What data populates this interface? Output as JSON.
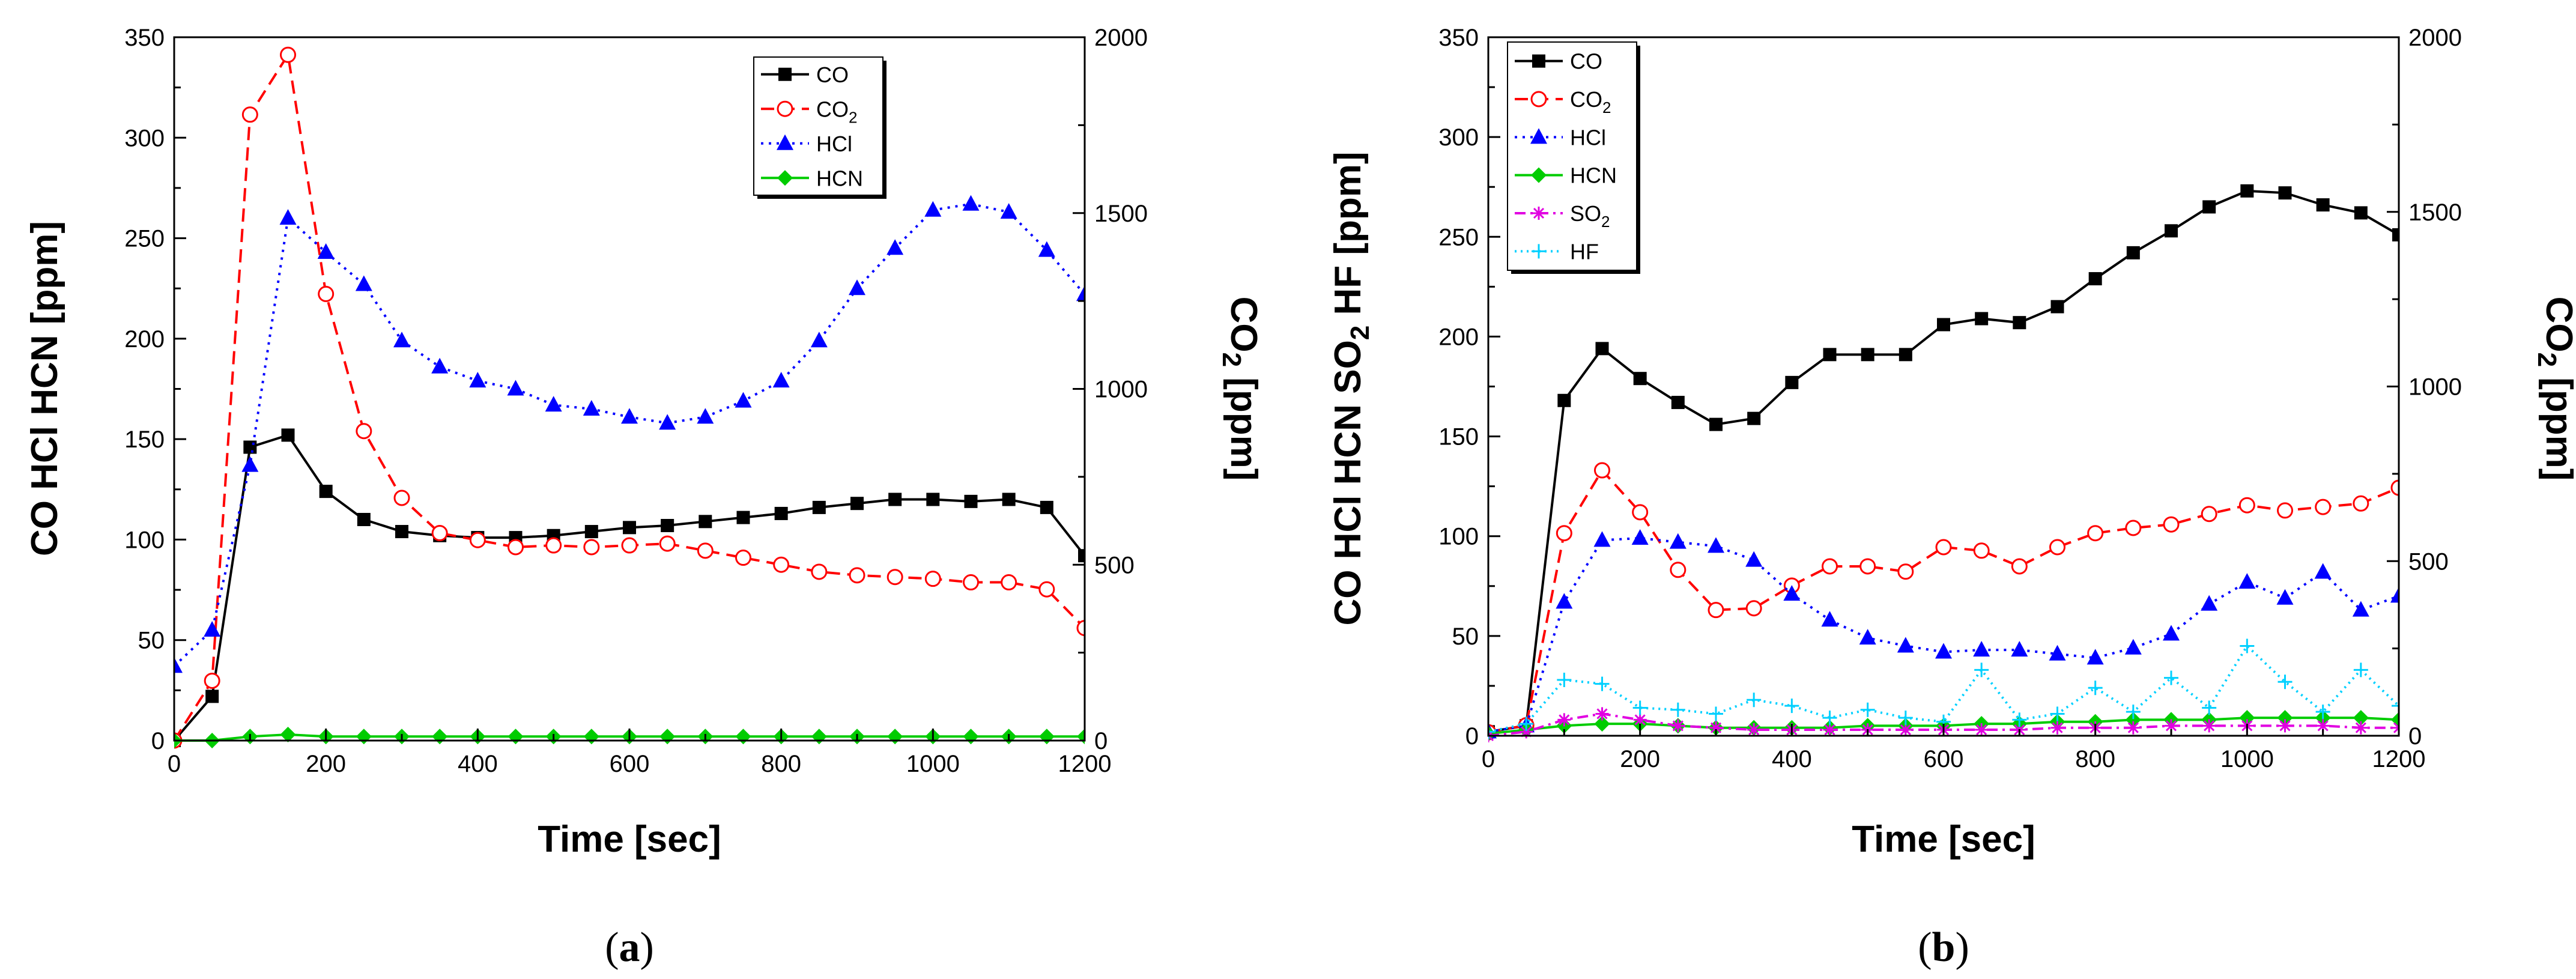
{
  "figure": {
    "captions": [
      "a",
      "b"
    ]
  },
  "chart_data": [
    {
      "type": "line",
      "panel": "a",
      "caption": "a",
      "xlabel": "Time [sec]",
      "ylabel_left": "CO  HCl  HCN [ppm]",
      "ylabel_right": "CO2 [ppm]",
      "ylabel_right_main": "CO",
      "ylabel_right_sub": "2",
      "ylabel_right_tail": " [ppm]",
      "xlim": [
        0,
        1200
      ],
      "ylim_left": [
        0,
        350
      ],
      "ylim_right": [
        0,
        2000
      ],
      "xticks": [
        "0",
        "200",
        "400",
        "600",
        "800",
        "1000",
        "1200"
      ],
      "yticks_left": [
        "0",
        "50",
        "100",
        "150",
        "200",
        "250",
        "300",
        "350"
      ],
      "yticks_right": [
        "0",
        "500",
        "1000",
        "1500",
        "2000"
      ],
      "legend_position": "top-right",
      "series": [
        {
          "name": "CO",
          "label_main": "CO",
          "label_sub": "",
          "color": "#000000",
          "dash": "",
          "marker": "square",
          "axis": "left",
          "x": [
            0,
            50,
            100,
            150,
            200,
            250,
            300,
            350,
            400,
            450,
            500,
            550,
            600,
            650,
            700,
            750,
            800,
            850,
            900,
            950,
            1000,
            1050,
            1100,
            1150,
            1200
          ],
          "y": [
            0,
            22,
            146,
            152,
            124,
            110,
            104,
            102,
            101,
            101,
            102,
            104,
            106,
            107,
            109,
            111,
            113,
            116,
            118,
            120,
            120,
            119,
            120,
            116,
            92
          ]
        },
        {
          "name": "CO2",
          "label_main": "CO",
          "label_sub": "2",
          "color": "#ff0000",
          "dash": "22,12",
          "marker": "circle",
          "axis": "right",
          "x": [
            0,
            50,
            100,
            150,
            200,
            250,
            300,
            350,
            400,
            450,
            500,
            550,
            600,
            650,
            700,
            750,
            800,
            850,
            900,
            950,
            1000,
            1050,
            1100,
            1150,
            1200
          ],
          "y": [
            0,
            170,
            1780,
            1950,
            1270,
            880,
            690,
            590,
            570,
            550,
            555,
            550,
            555,
            560,
            540,
            520,
            500,
            480,
            470,
            465,
            460,
            450,
            450,
            430,
            320
          ]
        },
        {
          "name": "HCl",
          "label_main": "HCl",
          "label_sub": "",
          "color": "#0000ff",
          "dash": "4,9",
          "marker": "triangle",
          "axis": "left",
          "x": [
            0,
            50,
            100,
            150,
            200,
            250,
            300,
            350,
            400,
            450,
            500,
            550,
            600,
            650,
            700,
            750,
            800,
            850,
            900,
            950,
            1000,
            1050,
            1100,
            1150,
            1200
          ],
          "y": [
            37,
            55,
            137,
            260,
            243,
            227,
            199,
            186,
            179,
            175,
            167,
            165,
            161,
            158,
            161,
            169,
            179,
            199,
            225,
            245,
            264,
            267,
            263,
            244,
            222
          ]
        },
        {
          "name": "HCN",
          "label_main": "HCN",
          "label_sub": "",
          "color": "#00cc00",
          "dash": "",
          "marker": "diamond",
          "axis": "left",
          "x": [
            0,
            50,
            100,
            150,
            200,
            250,
            300,
            350,
            400,
            450,
            500,
            550,
            600,
            650,
            700,
            750,
            800,
            850,
            900,
            950,
            1000,
            1050,
            1100,
            1150,
            1200
          ],
          "y": [
            0,
            0,
            2,
            3,
            2,
            2,
            2,
            2,
            2,
            2,
            2,
            2,
            2,
            2,
            2,
            2,
            2,
            2,
            2,
            2,
            2,
            2,
            2,
            2,
            2
          ]
        }
      ]
    },
    {
      "type": "line",
      "panel": "b",
      "caption": "b",
      "xlabel": "Time [sec]",
      "ylabel_left": "CO  HCl  HCN  SO2  HF [ppm]",
      "ylabel_left_parts": [
        "CO  HCl  HCN  SO",
        "2",
        "  HF [ppm]"
      ],
      "ylabel_right": "CO2 [ppm]",
      "ylabel_right_main": "CO",
      "ylabel_right_sub": "2",
      "ylabel_right_tail": " [ppm]",
      "xlim": [
        0,
        1200
      ],
      "ylim_left": [
        0,
        350
      ],
      "ylim_right": [
        0,
        2000
      ],
      "xticks": [
        "0",
        "200",
        "400",
        "600",
        "800",
        "1000",
        "1200"
      ],
      "yticks_left": [
        "0",
        "50",
        "100",
        "150",
        "200",
        "250",
        "300",
        "350"
      ],
      "yticks_right": [
        "0",
        "500",
        "1000",
        "1500",
        "2000"
      ],
      "legend_position": "top-left",
      "series": [
        {
          "name": "CO",
          "label_main": "CO",
          "label_sub": "",
          "color": "#000000",
          "dash": "",
          "marker": "square",
          "axis": "left",
          "x": [
            0,
            50,
            100,
            150,
            200,
            250,
            300,
            350,
            400,
            450,
            500,
            550,
            600,
            650,
            700,
            750,
            800,
            850,
            900,
            950,
            1000,
            1050,
            1100,
            1150,
            1200
          ],
          "y": [
            2,
            5,
            168,
            194,
            179,
            167,
            156,
            159,
            177,
            191,
            191,
            191,
            206,
            209,
            207,
            215,
            229,
            242,
            253,
            265,
            273,
            272,
            266,
            262,
            251
          ]
        },
        {
          "name": "CO2",
          "label_main": "CO",
          "label_sub": "2",
          "color": "#ff0000",
          "dash": "22,12",
          "marker": "circle",
          "axis": "right",
          "x": [
            0,
            50,
            100,
            150,
            200,
            250,
            300,
            350,
            400,
            450,
            500,
            550,
            600,
            650,
            700,
            750,
            800,
            850,
            900,
            950,
            1000,
            1050,
            1100,
            1150,
            1200
          ],
          "y": [
            10,
            30,
            580,
            760,
            640,
            475,
            360,
            365,
            430,
            485,
            485,
            470,
            540,
            530,
            485,
            540,
            580,
            595,
            605,
            635,
            660,
            645,
            655,
            665,
            710
          ]
        },
        {
          "name": "HCl",
          "label_main": "HCl",
          "label_sub": "",
          "color": "#0000ff",
          "dash": "4,9",
          "marker": "triangle",
          "axis": "left",
          "x": [
            0,
            50,
            100,
            150,
            200,
            250,
            300,
            350,
            400,
            450,
            500,
            550,
            600,
            650,
            700,
            750,
            800,
            850,
            900,
            950,
            1000,
            1050,
            1100,
            1150,
            1200
          ],
          "y": [
            2,
            5,
            67,
            98,
            99,
            97,
            95,
            88,
            71,
            58,
            49,
            45,
            42,
            43,
            43,
            41,
            39,
            44,
            51,
            66,
            77,
            69,
            82,
            63,
            70
          ]
        },
        {
          "name": "HCN",
          "label_main": "HCN",
          "label_sub": "",
          "color": "#00cc00",
          "dash": "",
          "marker": "diamond",
          "axis": "left",
          "x": [
            0,
            50,
            100,
            150,
            200,
            250,
            300,
            350,
            400,
            450,
            500,
            550,
            600,
            650,
            700,
            750,
            800,
            850,
            900,
            950,
            1000,
            1050,
            1100,
            1150,
            1200
          ],
          "y": [
            1,
            3,
            5,
            6,
            6,
            5,
            4,
            4,
            4,
            4,
            5,
            5,
            5,
            6,
            6,
            7,
            7,
            8,
            8,
            8,
            9,
            9,
            9,
            9,
            8
          ]
        },
        {
          "name": "SO2",
          "label_main": "SO",
          "label_sub": "2",
          "color": "#e100e1",
          "dash": "18,8,4,8",
          "marker": "asterisk",
          "axis": "left",
          "x": [
            0,
            50,
            100,
            150,
            200,
            250,
            300,
            350,
            400,
            450,
            500,
            550,
            600,
            650,
            700,
            750,
            800,
            850,
            900,
            950,
            1000,
            1050,
            1100,
            1150,
            1200
          ],
          "y": [
            0,
            2,
            8,
            11,
            8,
            5,
            4,
            3,
            3,
            3,
            3,
            3,
            3,
            3,
            3,
            4,
            4,
            4,
            5,
            5,
            5,
            5,
            5,
            4,
            4
          ]
        },
        {
          "name": "HF",
          "label_main": "HF",
          "label_sub": "",
          "color": "#00d0ff",
          "dash": "3,7",
          "marker": "plus",
          "axis": "left",
          "x": [
            0,
            50,
            100,
            150,
            200,
            250,
            300,
            350,
            400,
            450,
            500,
            550,
            600,
            650,
            700,
            750,
            800,
            850,
            900,
            950,
            1000,
            1050,
            1100,
            1150,
            1200
          ],
          "y": [
            2,
            6,
            28,
            26,
            14,
            13,
            11,
            18,
            15,
            9,
            13,
            9,
            7,
            33,
            8,
            11,
            24,
            12,
            29,
            14,
            45,
            27,
            12,
            33,
            15
          ]
        }
      ]
    }
  ]
}
